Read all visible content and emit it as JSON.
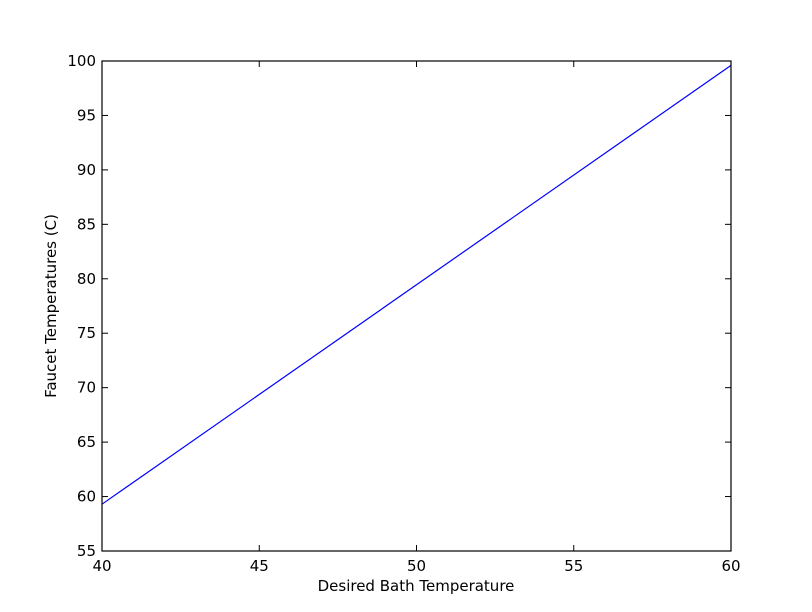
{
  "chart_data": {
    "type": "line",
    "title": "",
    "xlabel": "Desired Bath Temperature",
    "ylabel": "Faucet Temperatures (C)",
    "xlim": [
      40,
      60
    ],
    "ylim": [
      55,
      100
    ],
    "xticks": [
      40,
      45,
      50,
      55,
      60
    ],
    "yticks": [
      55,
      60,
      65,
      70,
      75,
      80,
      85,
      90,
      95,
      100
    ],
    "xtick_labels": [
      "40",
      "45",
      "50",
      "55",
      "60"
    ],
    "ytick_labels": [
      "55",
      "60",
      "65",
      "70",
      "75",
      "80",
      "85",
      "90",
      "95",
      "100"
    ],
    "grid": false,
    "legend": "none",
    "series": [
      {
        "color": "#0000ff",
        "x": [
          40,
          60
        ],
        "y": [
          59.3,
          99.6
        ]
      }
    ]
  }
}
